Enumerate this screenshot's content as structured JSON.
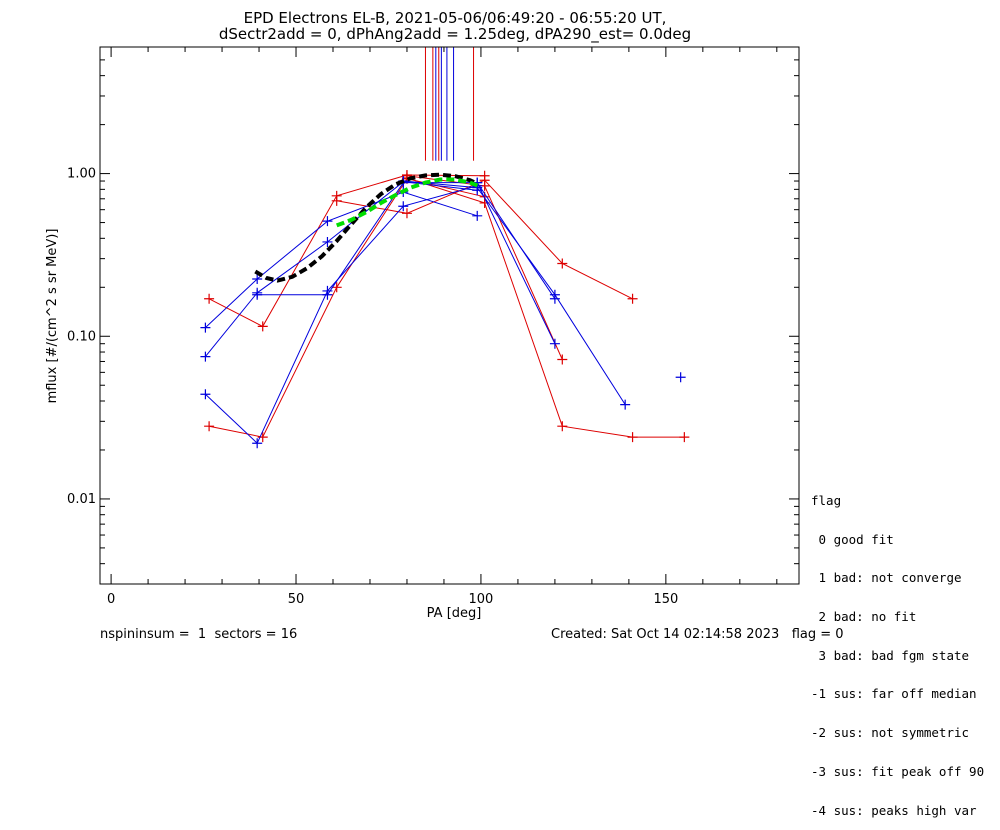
{
  "chart_data": {
    "type": "scatter",
    "title": "EPD Electrons EL-B, 2021-05-06/06:49:20 - 06:55:20 UT,",
    "subtitle": "dSectr2add = 0, dPhAng2add = 1.25deg, dPA290_est=   0.0deg",
    "xlabel": "PA [deg]",
    "ylabel": "mflux [#/(cm^2 s sr MeV)]",
    "xlim": [
      -3,
      186
    ],
    "ylim": [
      0.003,
      6.0
    ],
    "yscale": "log",
    "xticks": [
      0,
      50,
      100,
      150
    ],
    "xtick_labels": [
      "0",
      "50",
      "100",
      "150"
    ],
    "yticks": [
      0.01,
      0.1,
      1.0
    ],
    "ytick_labels": [
      "0.01",
      "0.10",
      "1.00"
    ],
    "colors": {
      "red": "#dd0000",
      "blue": "#0000dd",
      "fit_black": "#000000",
      "fit_green": "#00dd00"
    },
    "series": [
      {
        "color": "red",
        "x": [
          26.5,
          41,
          61,
          80,
          101
        ],
        "y": [
          0.17,
          0.115,
          0.73,
          0.98,
          0.97
        ]
      },
      {
        "color": "red",
        "x": [
          61,
          80,
          101,
          122,
          141
        ],
        "y": [
          0.68,
          0.57,
          0.91,
          0.28,
          0.17
        ]
      },
      {
        "color": "red",
        "x": [
          26.5,
          41,
          61,
          80,
          101
        ],
        "y": [
          0.028,
          0.024,
          0.2,
          0.93,
          0.72
        ]
      },
      {
        "color": "red",
        "x": [
          80,
          101,
          122,
          141,
          155
        ],
        "y": [
          0.94,
          0.66,
          0.028,
          0.024,
          0.024
        ]
      },
      {
        "color": "red",
        "x": [
          80,
          101,
          122
        ],
        "y": [
          0.97,
          0.84,
          0.072
        ]
      },
      {
        "color": "blue",
        "x": [
          25.5,
          39.5,
          58.5,
          79,
          99
        ],
        "y": [
          0.113,
          0.225,
          0.51,
          0.77,
          0.55
        ]
      },
      {
        "color": "blue",
        "x": [
          25.5,
          39.5,
          58.5,
          79,
          99
        ],
        "y": [
          0.075,
          0.185,
          0.38,
          0.89,
          0.79
        ]
      },
      {
        "color": "blue",
        "x": [
          25.5,
          39.5,
          58.5,
          79,
          99
        ],
        "y": [
          0.044,
          0.022,
          0.19,
          0.63,
          0.84
        ]
      },
      {
        "color": "blue",
        "x": [
          39.5,
          58.5,
          79,
          99,
          120
        ],
        "y": [
          0.18,
          0.18,
          0.88,
          0.88,
          0.09
        ]
      },
      {
        "color": "blue",
        "x": [
          79,
          99,
          120,
          139
        ],
        "y": [
          0.9,
          0.82,
          0.18,
          0.038
        ]
      },
      {
        "color": "blue",
        "x": [
          99,
          120
        ],
        "y": [
          0.88,
          0.17
        ]
      },
      {
        "color": "blue",
        "x": [
          154
        ],
        "y": [
          0.056
        ]
      }
    ],
    "fits": [
      {
        "color": "fit_black",
        "dash": "dashed",
        "x": [
          39,
          42,
          45,
          49,
          53,
          57,
          61,
          65,
          69,
          73,
          77,
          81,
          85,
          89,
          93,
          97,
          99
        ],
        "y": [
          0.25,
          0.228,
          0.22,
          0.232,
          0.262,
          0.31,
          0.385,
          0.49,
          0.62,
          0.75,
          0.86,
          0.935,
          0.975,
          0.985,
          0.965,
          0.91,
          0.87
        ]
      },
      {
        "color": "fit_green",
        "dash": "dashed",
        "x": [
          61,
          65,
          69,
          73,
          77,
          81,
          85,
          89,
          93,
          97,
          100
        ],
        "y": [
          0.48,
          0.52,
          0.58,
          0.66,
          0.74,
          0.82,
          0.88,
          0.92,
          0.92,
          0.88,
          0.83
        ]
      }
    ],
    "vertical_lines": [
      {
        "color": "red",
        "x": 85.0
      },
      {
        "color": "red",
        "x": 87.0
      },
      {
        "color": "red",
        "x": 88.6
      },
      {
        "color": "red",
        "x": 98.0
      },
      {
        "color": "blue",
        "x": 87.8
      },
      {
        "color": "blue",
        "x": 89.3
      },
      {
        "color": "blue",
        "x": 90.8
      },
      {
        "color": "blue",
        "x": 92.6
      }
    ],
    "vertical_line_y_range": [
      1.2,
      6.0
    ]
  },
  "legend": {
    "title": "flag",
    "items": [
      " 0 good fit",
      " 1 bad: not converge",
      " 2 bad: no fit",
      " 3 bad: bad fgm state",
      "-1 sus: far off median",
      "-2 sus: not symmetric",
      "-3 sus: fit peak off 90",
      "-4 sus: peaks high var"
    ]
  },
  "footer": {
    "left": "nspininsum =  1  sectors = 16",
    "right": "Created: Sat Oct 14 02:14:58 2023   flag = 0"
  }
}
